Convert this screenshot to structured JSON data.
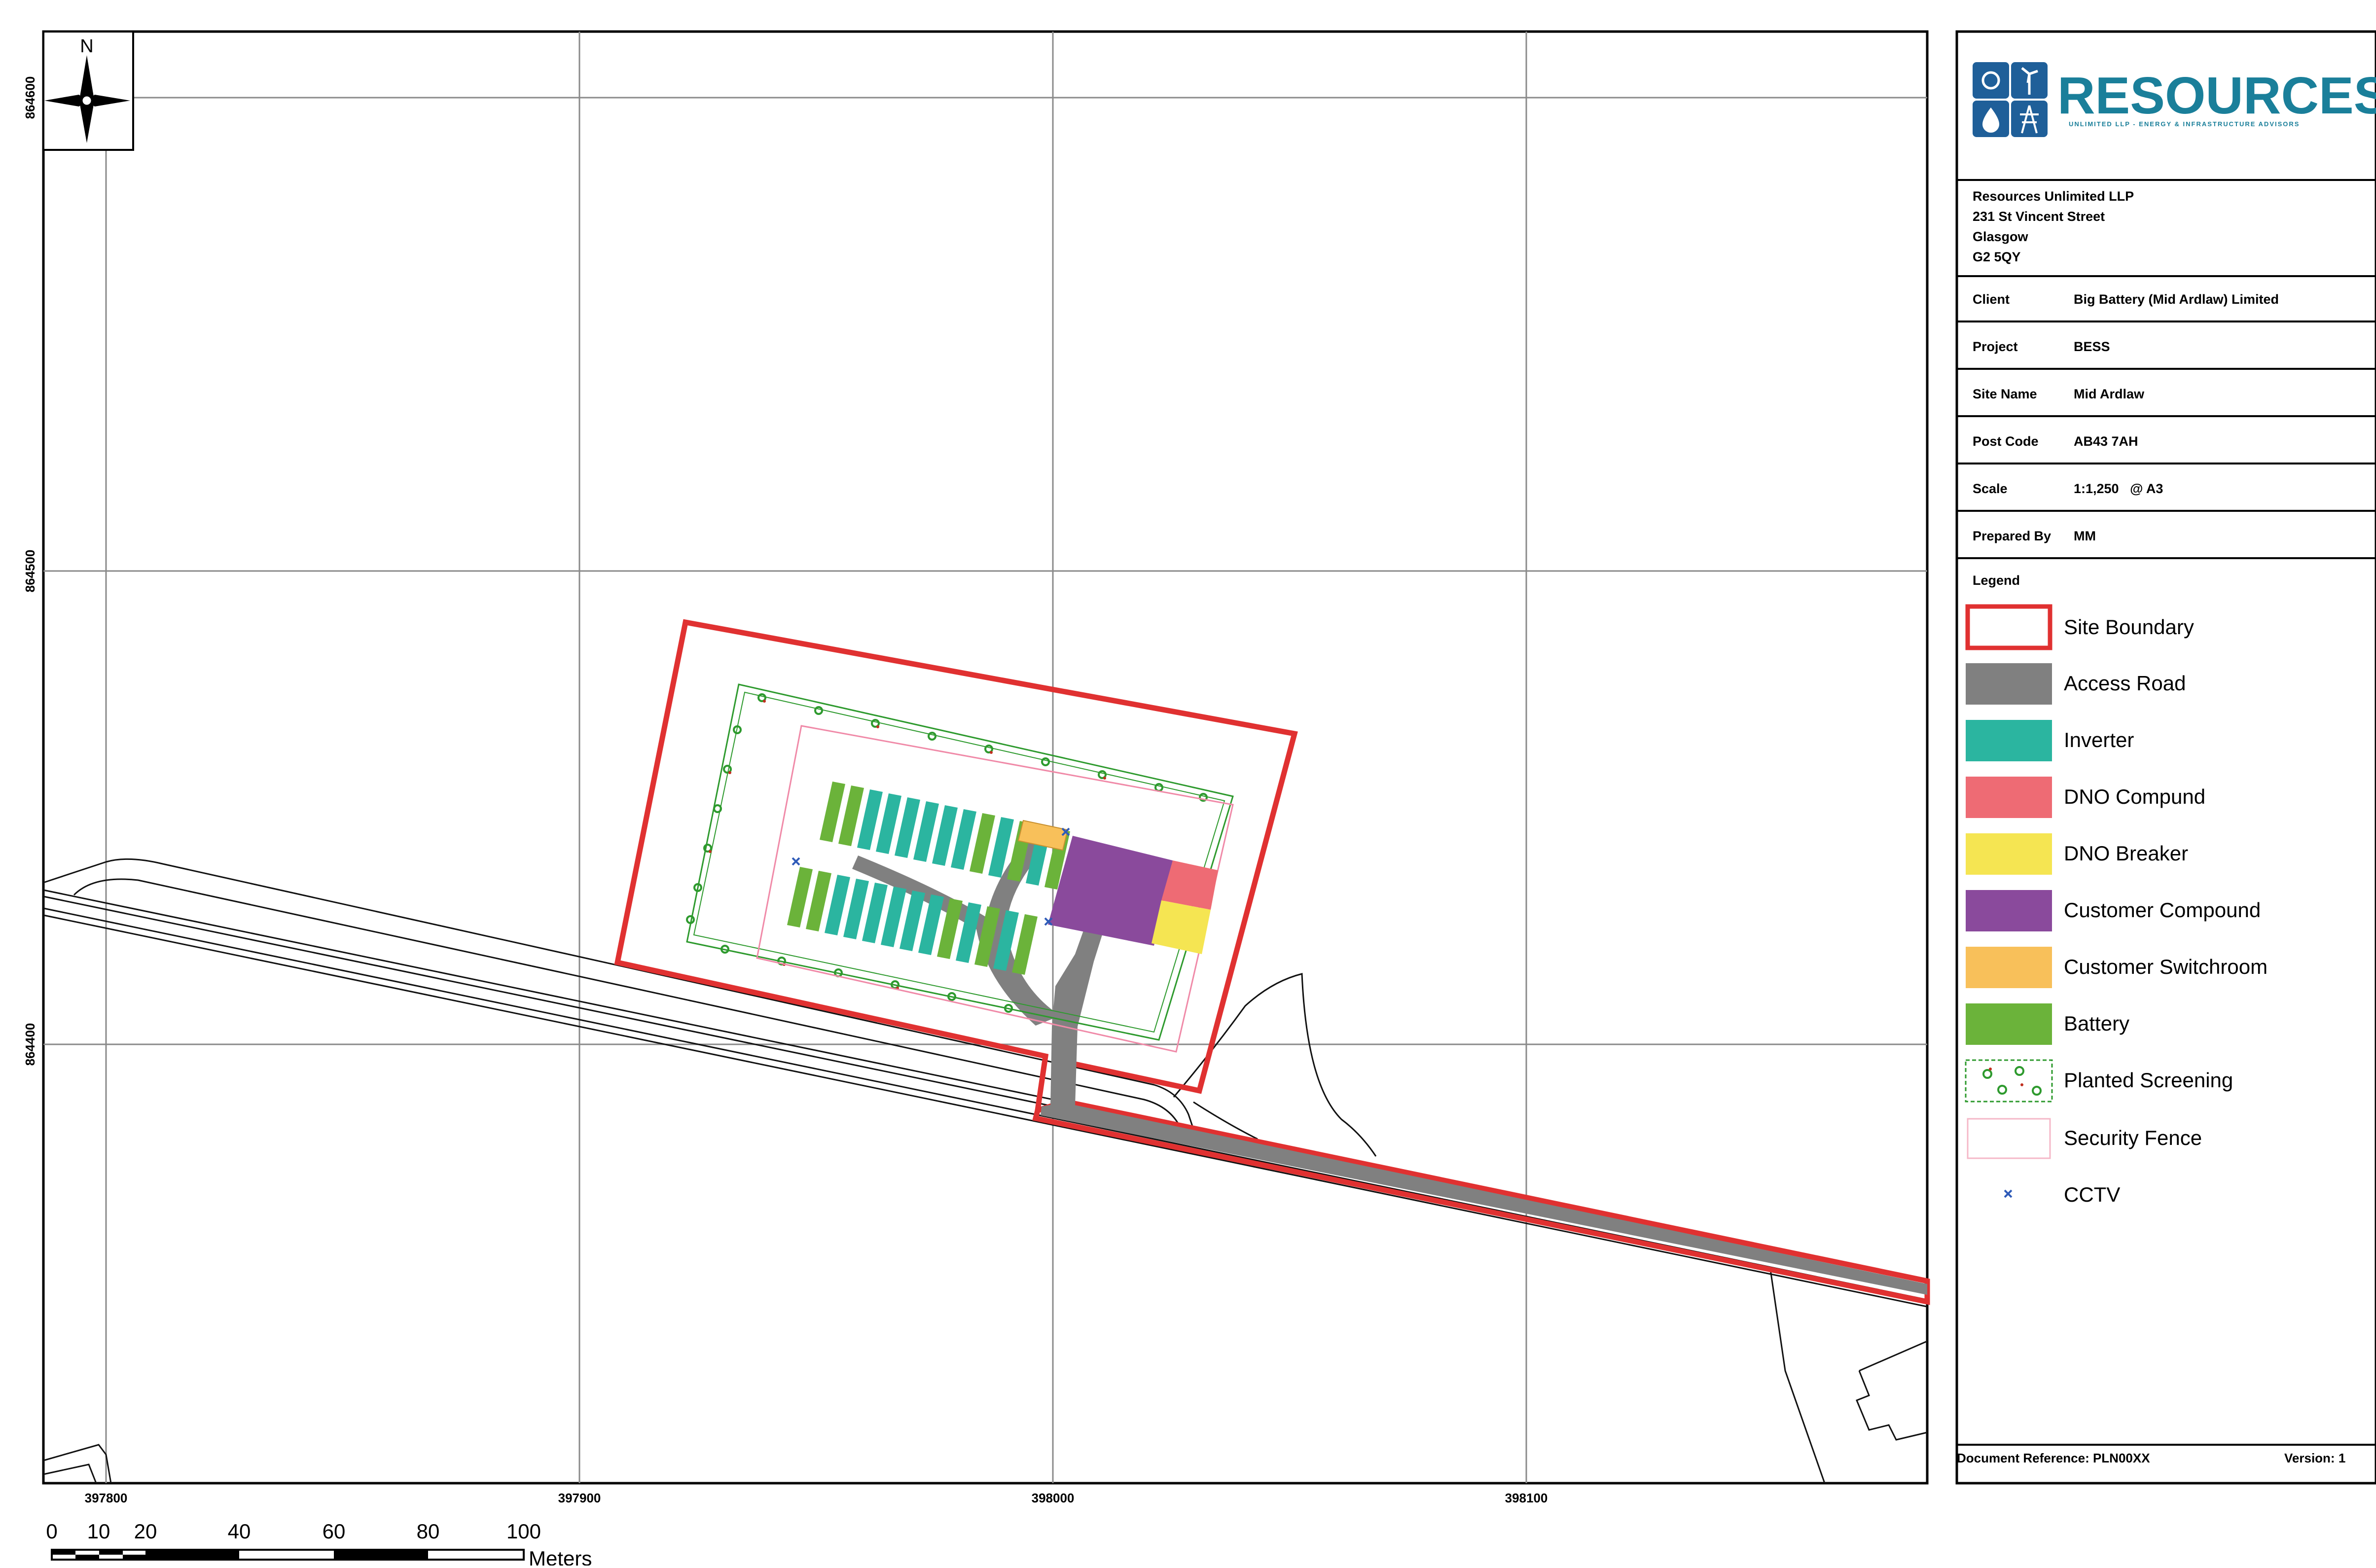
{
  "north_arrow": {
    "label": "N"
  },
  "grid": {
    "x_labels": [
      "397800",
      "397900",
      "398000",
      "398100"
    ],
    "y_labels": [
      "864600",
      "864500",
      "864400"
    ]
  },
  "scale_bar": {
    "ticks": [
      "0",
      "10",
      "20",
      "40",
      "60",
      "80",
      "100"
    ],
    "unit": "Meters"
  },
  "title_block": {
    "logo": {
      "name": "RESOURCES",
      "tagline": "UNLIMITED LLP - ENERGY & INFRASTRUCTURE ADVISORS",
      "brand_color": "#1a7f9a"
    },
    "address": [
      "Resources Unlimited LLP",
      "231 St Vincent Street",
      "Glasgow",
      "G2 5QY"
    ],
    "fields": [
      {
        "label": "Client",
        "value": "Big Battery (Mid Ardlaw) Limited"
      },
      {
        "label": "Project",
        "value": "BESS"
      },
      {
        "label": "Site Name",
        "value": "Mid Ardlaw"
      },
      {
        "label": "Post Code",
        "value": "AB43 7AH"
      },
      {
        "label": "Scale",
        "value": "1:1,250   @ A3"
      },
      {
        "label": "Prepared By",
        "value": "MM"
      }
    ],
    "legend_title": "Legend",
    "legend": [
      {
        "label": "Site Boundary",
        "color": "#e03131"
      },
      {
        "label": "Access Road",
        "color": "#808080"
      },
      {
        "label": "Inverter",
        "color": "#2bb5a0"
      },
      {
        "label": "DNO Compund",
        "color": "#ee6b74"
      },
      {
        "label": "DNO Breaker",
        "color": "#f5e552"
      },
      {
        "label": "Customer Compound",
        "color": "#8a4a9c"
      },
      {
        "label": "Customer Switchroom",
        "color": "#f8c05a"
      },
      {
        "label": "Battery",
        "color": "#6bb33a"
      },
      {
        "label": "Planted Screening",
        "color": "#2e9a2e"
      },
      {
        "label": "Security Fence",
        "color": "#f5b8c8"
      },
      {
        "label": "CCTV",
        "color": "#2f5bb8"
      }
    ],
    "doc_reference": "Document Reference: PLN00XX",
    "version": "Version: 1"
  }
}
